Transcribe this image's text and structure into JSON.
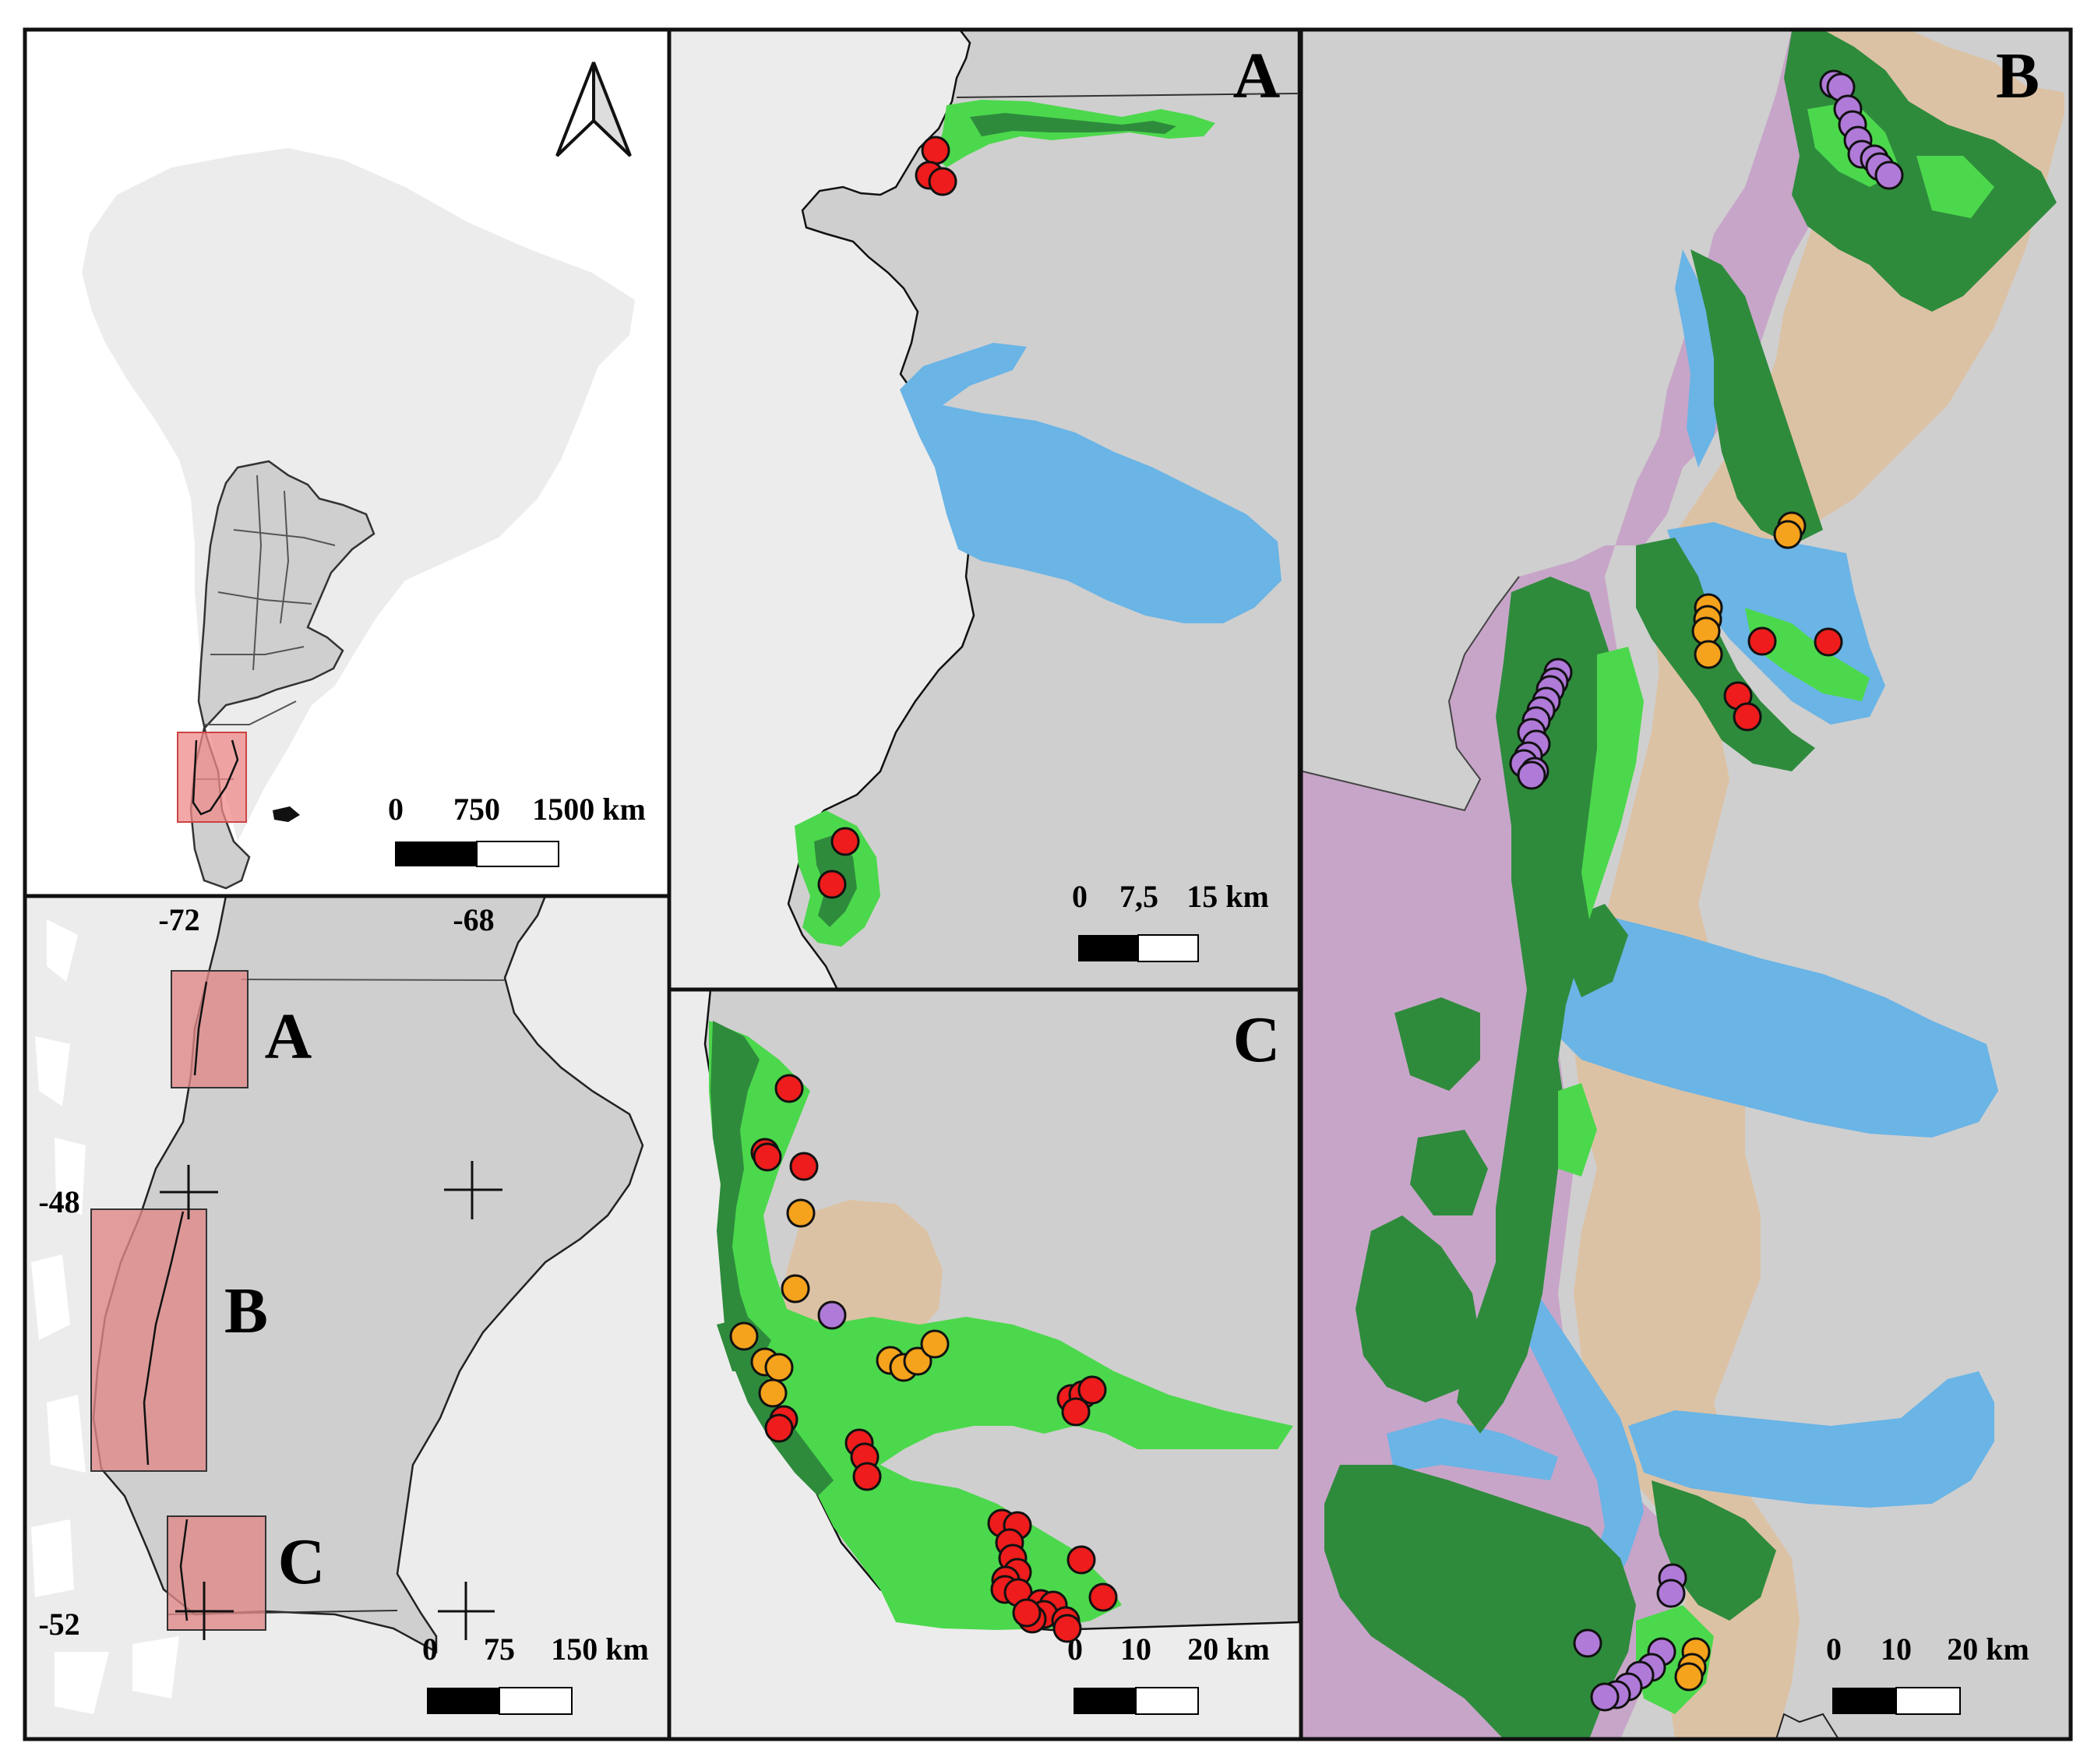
{
  "colors": {
    "land_gray": "#cfcfcf",
    "bg_light": "#ececec",
    "lake_blue": "#6ab4e6",
    "forest_dark": "#2e8b3c",
    "forest_light": "#4cd84c",
    "zone_purple": "#c7a5c8",
    "zone_tan": "#dcc2a4",
    "box_red": "#f08a8a",
    "point_red": "#ee1c1c",
    "point_orange": "#f5a21c",
    "point_purple": "#b07ad8"
  },
  "north_arrow": {
    "icon": "north-arrow-icon"
  },
  "overview": {
    "scale_ticks": [
      "0",
      "750",
      "1500 km"
    ]
  },
  "locator": {
    "lon_labels": [
      "-72",
      "-68"
    ],
    "lat_labels": [
      "-48",
      "-52"
    ],
    "box_labels": [
      "A",
      "B",
      "C"
    ],
    "scale_ticks": [
      "0",
      "75",
      "150 km"
    ]
  },
  "panel_a": {
    "label": "A",
    "scale_ticks": [
      "0",
      "7,5",
      "15 km"
    ],
    "points": {
      "red": 5
    }
  },
  "panel_b": {
    "label": "B",
    "scale_ticks": [
      "0",
      "10",
      "20 km"
    ],
    "points": {
      "red": 5,
      "orange": 8,
      "purple": 33
    }
  },
  "panel_c": {
    "label": "C",
    "scale_ticks": [
      "0",
      "10",
      "20 km"
    ],
    "points": {
      "red": 27,
      "orange": 13,
      "purple": 1
    }
  }
}
